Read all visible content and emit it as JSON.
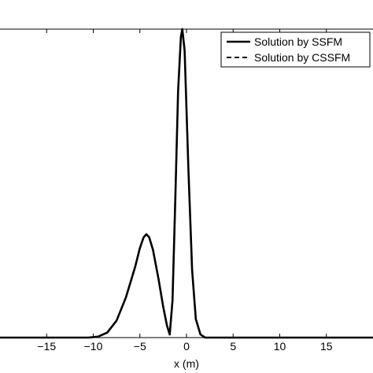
{
  "chart_data": {
    "type": "line",
    "title": "",
    "xlabel": "x (m)",
    "ylabel": "",
    "xlim": [
      -20,
      20
    ],
    "ylim": [
      0,
      1
    ],
    "x_ticks": [
      -15,
      -10,
      -5,
      0,
      5,
      10,
      15
    ],
    "x_tick_labels": [
      "−15",
      "−10",
      "−5",
      "0",
      "5",
      "10",
      "15"
    ],
    "grid": false,
    "legend_position": "top-right",
    "series": [
      {
        "name": "Solution by SSFM",
        "style": "solid",
        "color": "#000000",
        "x": [
          -20,
          -12,
          -10.5,
          -9.5,
          -8.5,
          -7.5,
          -6.5,
          -5.5,
          -5.0,
          -4.6,
          -4.3,
          -4.0,
          -3.6,
          -3.0,
          -2.5,
          -2.1,
          -1.8,
          -1.5,
          -1.2,
          -0.9,
          -0.6,
          -0.45,
          -0.2,
          0.2,
          0.6,
          1.0,
          1.5,
          2.0,
          20
        ],
        "y": [
          0,
          0,
          0.0,
          0.003,
          0.016,
          0.055,
          0.13,
          0.23,
          0.29,
          0.325,
          0.335,
          0.325,
          0.285,
          0.19,
          0.1,
          0.04,
          0.01,
          0.12,
          0.45,
          0.8,
          0.975,
          1.0,
          0.93,
          0.55,
          0.22,
          0.06,
          0.01,
          0.0,
          0
        ]
      },
      {
        "name": "Solution by CSSFM",
        "style": "dashed",
        "color": "#000000",
        "x": [
          -20,
          -12,
          -10.5,
          -9.5,
          -8.5,
          -7.5,
          -6.5,
          -5.5,
          -5.0,
          -4.6,
          -4.3,
          -4.0,
          -3.6,
          -3.0,
          -2.5,
          -2.1,
          -1.8,
          -1.5,
          -1.2,
          -0.9,
          -0.6,
          -0.45,
          -0.2,
          0.2,
          0.6,
          1.0,
          1.5,
          2.0,
          20
        ],
        "y": [
          0,
          0,
          0.0,
          0.003,
          0.016,
          0.055,
          0.13,
          0.23,
          0.29,
          0.325,
          0.335,
          0.325,
          0.285,
          0.19,
          0.1,
          0.04,
          0.01,
          0.12,
          0.45,
          0.8,
          0.975,
          1.0,
          0.93,
          0.55,
          0.22,
          0.06,
          0.01,
          0.0,
          0
        ]
      }
    ]
  }
}
